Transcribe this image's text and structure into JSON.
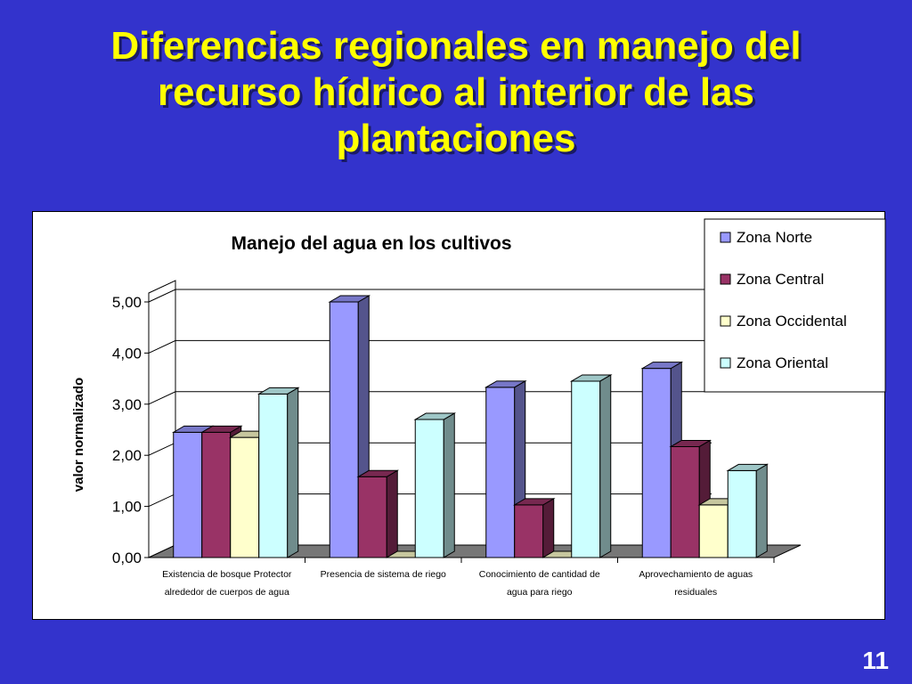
{
  "slide": {
    "title_lines": [
      "Diferencias regionales en manejo del",
      "recurso hídrico al interior de las",
      "plantaciones"
    ],
    "page_number": "11"
  },
  "chart_data": {
    "type": "bar",
    "title": "Manejo del agua en los cultivos",
    "xlabel": "",
    "ylabel": "valor normalizado",
    "ylim": [
      0,
      5
    ],
    "yticks": [
      "0,00",
      "1,00",
      "2,00",
      "3,00",
      "4,00",
      "5,00"
    ],
    "categories": [
      [
        "Existencia de bosque Protector",
        "alrededor de cuerpos de agua"
      ],
      [
        "Presencia de sistema de riego"
      ],
      [
        "Conocimiento de cantidad de",
        "agua para riego"
      ],
      [
        "Aprovechamiento de aguas",
        "residuales"
      ]
    ],
    "series": [
      {
        "name": "Zona Norte",
        "color": "#9999ff",
        "values": [
          2.45,
          5.0,
          3.33,
          3.7
        ]
      },
      {
        "name": "Zona Central",
        "color": "#993366",
        "values": [
          2.45,
          1.58,
          1.03,
          2.17
        ]
      },
      {
        "name": "Zona Occidental",
        "color": "#ffffcc",
        "values": [
          2.35,
          0.0,
          0.0,
          1.03
        ]
      },
      {
        "name": "Zona Oriental",
        "color": "#ccffff",
        "values": [
          3.2,
          2.7,
          3.45,
          1.7
        ]
      }
    ],
    "grid": true,
    "legend_position": "top-right",
    "projection": "3d"
  }
}
